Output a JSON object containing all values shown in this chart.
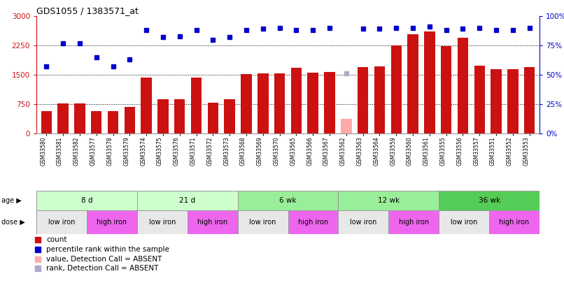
{
  "title": "GDS1055 / 1383571_at",
  "samples": [
    "GSM33580",
    "GSM33581",
    "GSM33582",
    "GSM33577",
    "GSM33578",
    "GSM33579",
    "GSM33574",
    "GSM33575",
    "GSM33576",
    "GSM33571",
    "GSM33572",
    "GSM33573",
    "GSM33568",
    "GSM33569",
    "GSM33570",
    "GSM33565",
    "GSM33566",
    "GSM33567",
    "GSM33562",
    "GSM33563",
    "GSM33564",
    "GSM33559",
    "GSM33560",
    "GSM33561",
    "GSM33555",
    "GSM33556",
    "GSM33557",
    "GSM33551",
    "GSM33552",
    "GSM33553"
  ],
  "counts": [
    580,
    760,
    760,
    570,
    570,
    680,
    1420,
    870,
    880,
    1420,
    780,
    880,
    1510,
    1530,
    1530,
    1680,
    1560,
    1580,
    370,
    1700,
    1710,
    2250,
    2530,
    2600,
    2230,
    2440,
    1740,
    1640,
    1650,
    1700
  ],
  "absent_count_idx": 18,
  "absent_rank_idx": 18,
  "ranks": [
    57,
    77,
    77,
    65,
    57,
    63,
    88,
    82,
    83,
    88,
    80,
    82,
    88,
    89,
    90,
    88,
    88,
    90,
    51,
    89,
    89,
    90,
    90,
    91,
    88,
    89,
    90,
    88,
    88,
    90
  ],
  "ylim_left": [
    0,
    3000
  ],
  "ylim_right": [
    0,
    100
  ],
  "yticks_left": [
    0,
    750,
    1500,
    2250,
    3000
  ],
  "yticks_right": [
    0,
    25,
    50,
    75,
    100
  ],
  "ytick_labels_right": [
    "0%",
    "25%",
    "50%",
    "75%",
    "100%"
  ],
  "bar_color": "#cc1111",
  "absent_bar_color": "#ffaaaa",
  "rank_color": "#0000cc",
  "absent_rank_color": "#aaaacc",
  "age_groups": [
    {
      "label": "8 d",
      "start": 0,
      "end": 6,
      "color": "#ccffcc"
    },
    {
      "label": "21 d",
      "start": 6,
      "end": 12,
      "color": "#ccffcc"
    },
    {
      "label": "6 wk",
      "start": 12,
      "end": 18,
      "color": "#99ee99"
    },
    {
      "label": "12 wk",
      "start": 18,
      "end": 24,
      "color": "#99ee99"
    },
    {
      "label": "36 wk",
      "start": 24,
      "end": 30,
      "color": "#55cc55"
    }
  ],
  "dose_groups": [
    {
      "label": "low iron",
      "start": 0,
      "end": 3,
      "color": "#e8e8e8"
    },
    {
      "label": "high iron",
      "start": 3,
      "end": 6,
      "color": "#ee66ee"
    },
    {
      "label": "low iron",
      "start": 6,
      "end": 9,
      "color": "#e8e8e8"
    },
    {
      "label": "high iron",
      "start": 9,
      "end": 12,
      "color": "#ee66ee"
    },
    {
      "label": "low iron",
      "start": 12,
      "end": 15,
      "color": "#e8e8e8"
    },
    {
      "label": "high iron",
      "start": 15,
      "end": 18,
      "color": "#ee66ee"
    },
    {
      "label": "low iron",
      "start": 18,
      "end": 21,
      "color": "#e8e8e8"
    },
    {
      "label": "high iron",
      "start": 21,
      "end": 24,
      "color": "#ee66ee"
    },
    {
      "label": "low iron",
      "start": 24,
      "end": 27,
      "color": "#e8e8e8"
    },
    {
      "label": "high iron",
      "start": 27,
      "end": 30,
      "color": "#ee66ee"
    }
  ],
  "legend_items": [
    {
      "label": "count",
      "color": "#cc1111"
    },
    {
      "label": "percentile rank within the sample",
      "color": "#0000cc"
    },
    {
      "label": "value, Detection Call = ABSENT",
      "color": "#ffaaaa"
    },
    {
      "label": "rank, Detection Call = ABSENT",
      "color": "#aaaacc"
    }
  ],
  "bg_color": "#ffffff"
}
